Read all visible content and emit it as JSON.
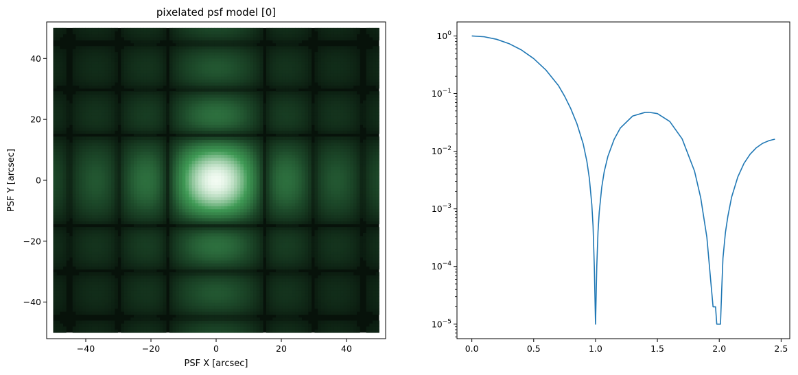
{
  "chart_data": [
    {
      "type": "heatmap",
      "title": "pixelated psf model [0]",
      "xlabel": "PSF X [arcsec]",
      "ylabel": "PSF Y [arcsec]",
      "xlim": [
        -52,
        52
      ],
      "ylim": [
        -52,
        52
      ],
      "image_extent": [
        -50,
        50,
        -50,
        50
      ],
      "x_ticks": [
        -40,
        -20,
        0,
        20,
        40
      ],
      "y_ticks": [
        -40,
        -20,
        0,
        20,
        40
      ],
      "x_tick_labels": [
        "−40",
        "−20",
        "0",
        "20",
        "40"
      ],
      "y_tick_labels": [
        "−40",
        "−20",
        "0",
        "20",
        "40"
      ],
      "pattern": "sinc-squared cross centered at (0, 0), zeros every 15 arcsec along each axis",
      "zero_spacing": 15,
      "colors": {
        "background": "#07120a",
        "low": "#1d4a2a",
        "mid": "#3f9a55",
        "high": "#f2fbf2"
      },
      "grid": false
    },
    {
      "type": "line",
      "xlabel": "",
      "ylabel": "",
      "yscale": "log",
      "xlim": [
        -0.12,
        2.57
      ],
      "ylim": [
        5.6e-06,
        1.75
      ],
      "x_ticks": [
        0.0,
        0.5,
        1.0,
        1.5,
        2.0,
        2.5
      ],
      "x_tick_labels": [
        "0.0",
        "0.5",
        "1.0",
        "1.5",
        "2.0",
        "2.5"
      ],
      "y_ticks": [
        1e-05,
        0.0001,
        0.001,
        0.01,
        0.1,
        1
      ],
      "y_tick_labels": [
        [
          "10",
          "−5"
        ],
        [
          "10",
          "−4"
        ],
        [
          "10",
          "−3"
        ],
        [
          "10",
          "−2"
        ],
        [
          "10",
          "−1"
        ],
        [
          "10",
          "0"
        ]
      ],
      "series": [
        {
          "color": "#1f77b4",
          "x": [
            0.0,
            0.1,
            0.2,
            0.3,
            0.4,
            0.5,
            0.6,
            0.7,
            0.75,
            0.8,
            0.85,
            0.9,
            0.93,
            0.95,
            0.97,
            0.98,
            0.99,
            1.0,
            1.01,
            1.02,
            1.03,
            1.05,
            1.07,
            1.1,
            1.15,
            1.2,
            1.3,
            1.4,
            1.43,
            1.5,
            1.6,
            1.7,
            1.8,
            1.85,
            1.9,
            1.93,
            1.95,
            1.97,
            1.98,
            1.99,
            2.0,
            2.01,
            2.02,
            2.03,
            2.05,
            2.07,
            2.1,
            2.15,
            2.2,
            2.25,
            2.3,
            2.35,
            2.4,
            2.43,
            2.45
          ],
          "y": [
            1.0,
            0.968,
            0.875,
            0.737,
            0.573,
            0.405,
            0.255,
            0.138,
            0.0901,
            0.0547,
            0.0298,
            0.0135,
            0.00667,
            0.00339,
            0.00118,
            0.0005,
            0.0001,
            1e-05,
            0.0001,
            0.0004,
            0.00088,
            0.00236,
            0.0044,
            0.00817,
            0.016,
            0.0252,
            0.0408,
            0.0472,
            0.0474,
            0.045,
            0.0328,
            0.0164,
            0.00453,
            0.00156,
            0.00032,
            6e-05,
            2e-05,
            2e-05,
            1e-05,
            1e-05,
            1e-05,
            1e-05,
            4e-05,
            0.00014,
            0.00039,
            0.00075,
            0.0016,
            0.00358,
            0.00615,
            0.00891,
            0.0115,
            0.0137,
            0.0152,
            0.0158,
            0.0162
          ]
        }
      ],
      "grid": false
    }
  ]
}
